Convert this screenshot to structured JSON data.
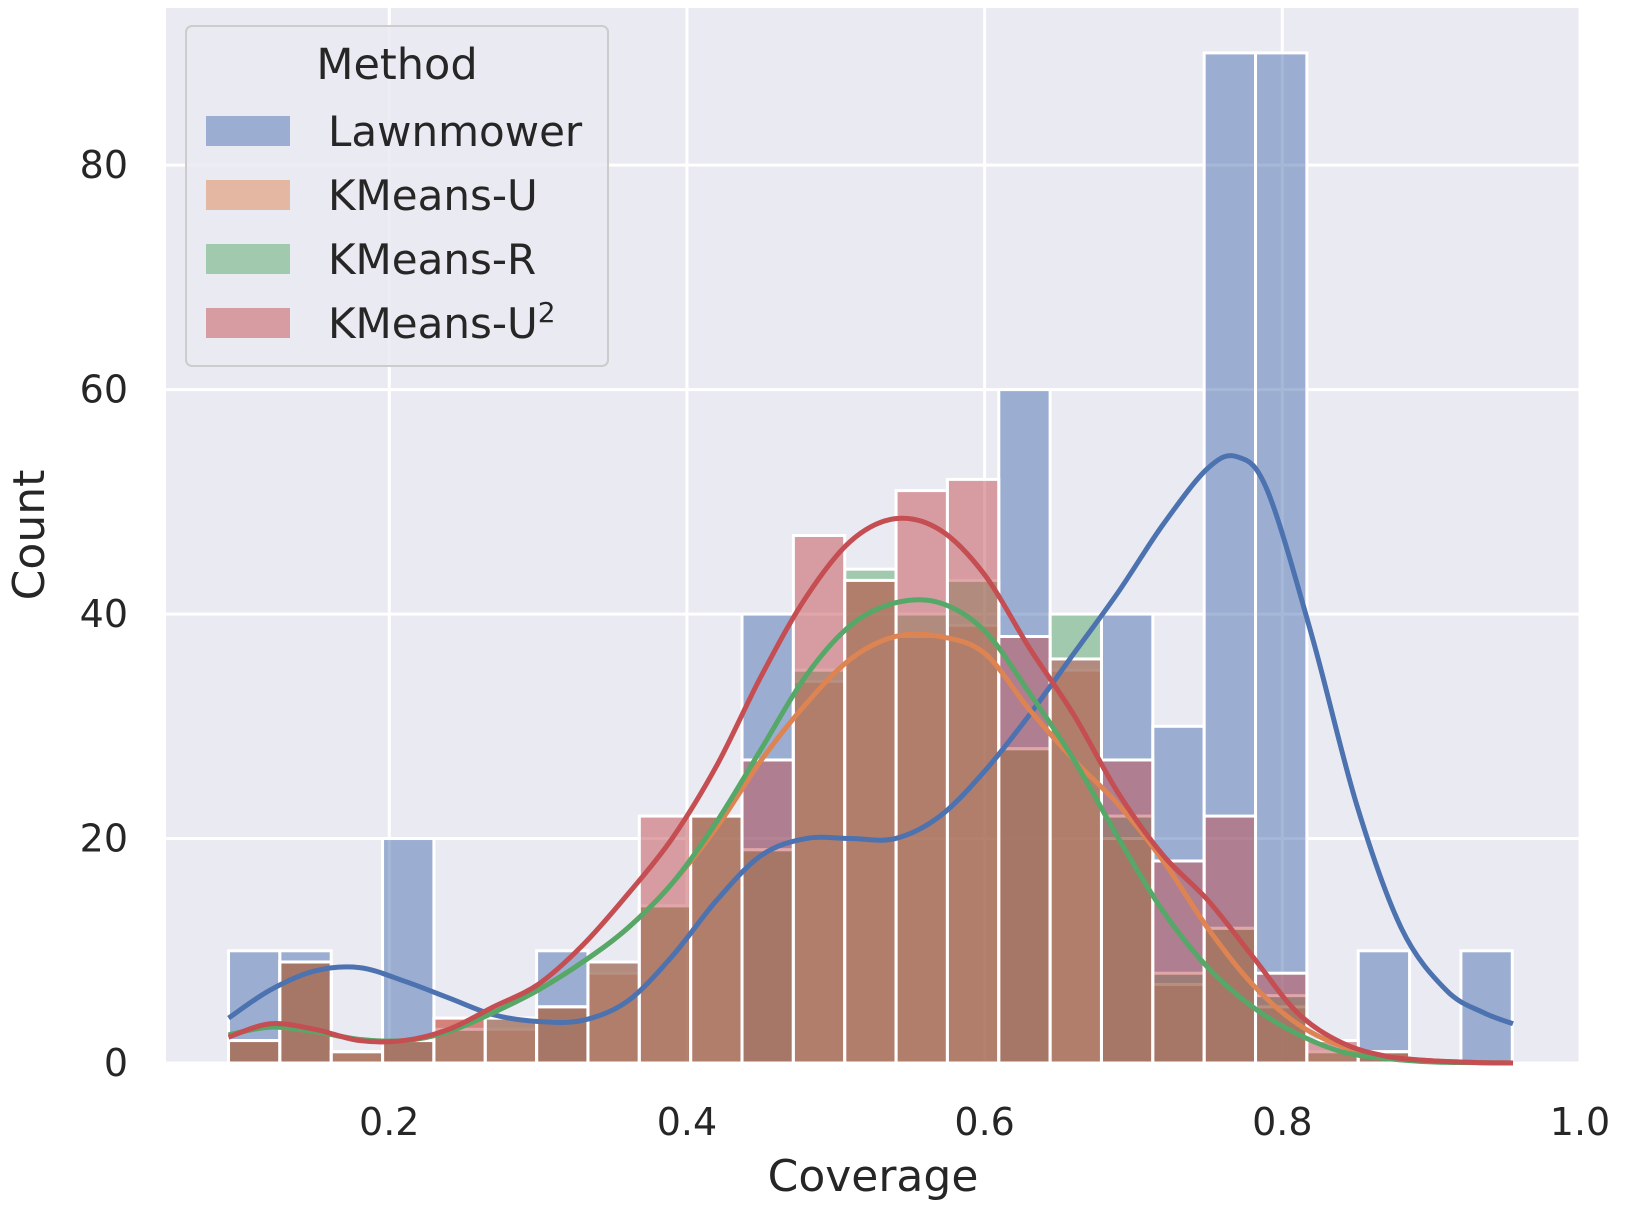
{
  "chart_data": {
    "type": "bar",
    "subtype": "overlaid histogram with kde curves",
    "xlabel": "Coverage",
    "ylabel": "Count",
    "xlim": [
      0.05,
      1.0
    ],
    "ylim": [
      0,
      94
    ],
    "xticks": [
      0.2,
      0.4,
      0.6,
      0.8,
      1.0
    ],
    "xtick_labels": [
      "0.2",
      "0.4",
      "0.6",
      "0.8",
      "1.0"
    ],
    "yticks": [
      0,
      20,
      40,
      60,
      80
    ],
    "ytick_labels": [
      "0",
      "20",
      "40",
      "60",
      "80"
    ],
    "grid": true,
    "background": "#eaeaf2",
    "legend": {
      "title": "Method",
      "position": "top-left",
      "entries": [
        {
          "label": "Lawnmower",
          "suffix": ""
        },
        {
          "label": "KMeans-U",
          "suffix": ""
        },
        {
          "label": "KMeans-R",
          "suffix": ""
        },
        {
          "label": "KMeans-U",
          "suffix": "2"
        }
      ]
    },
    "bin_edges": [
      0.092,
      0.1265,
      0.161,
      0.1955,
      0.23,
      0.2645,
      0.299,
      0.3335,
      0.368,
      0.4025,
      0.437,
      0.4715,
      0.506,
      0.5405,
      0.575,
      0.6095,
      0.644,
      0.6785,
      0.713,
      0.7475,
      0.782,
      0.8165,
      0.851,
      0.8855,
      0.92,
      0.9545
    ],
    "series": [
      {
        "name": "Lawnmower",
        "color": "#4c72b0",
        "counts": [
          10,
          10,
          0,
          20,
          0,
          0,
          10,
          0,
          0,
          0,
          40,
          0,
          0,
          0,
          0,
          60,
          0,
          40,
          30,
          90,
          90,
          0,
          10,
          0,
          10
        ],
        "kde_x": [
          0.092,
          0.12,
          0.15,
          0.18,
          0.21,
          0.24,
          0.27,
          0.3,
          0.33,
          0.36,
          0.39,
          0.42,
          0.45,
          0.48,
          0.51,
          0.54,
          0.57,
          0.6,
          0.63,
          0.66,
          0.69,
          0.72,
          0.75,
          0.77,
          0.79,
          0.82,
          0.85,
          0.88,
          0.91,
          0.935,
          0.955
        ],
        "kde_y": [
          4,
          6.5,
          8.2,
          8.5,
          7.3,
          5.8,
          4.3,
          3.7,
          3.8,
          5.5,
          9.5,
          14.5,
          18.5,
          20.0,
          20.0,
          20.0,
          22.0,
          26,
          31,
          36.5,
          42,
          48,
          53,
          54,
          51,
          38,
          23,
          12,
          6.5,
          4.5,
          3.5
        ]
      },
      {
        "name": "KMeans-U",
        "color": "#dd8452",
        "counts": [
          2,
          9,
          1,
          2,
          4,
          3,
          5,
          8,
          14,
          22,
          19,
          34,
          43,
          38,
          39,
          28,
          35,
          20,
          7,
          12,
          5,
          1,
          1,
          0,
          0
        ],
        "kde_x": [
          0.092,
          0.12,
          0.15,
          0.18,
          0.21,
          0.24,
          0.27,
          0.3,
          0.33,
          0.36,
          0.39,
          0.42,
          0.45,
          0.48,
          0.51,
          0.54,
          0.57,
          0.6,
          0.63,
          0.66,
          0.69,
          0.72,
          0.75,
          0.78,
          0.81,
          0.84,
          0.87,
          0.9,
          0.93,
          0.955
        ],
        "kde_y": [
          2.5,
          3.2,
          2.8,
          2.1,
          2.0,
          2.8,
          4.5,
          6.5,
          9.0,
          12,
          16,
          21,
          27,
          32,
          36,
          38,
          38,
          36.5,
          31.5,
          27,
          23,
          18,
          12,
          7,
          3.5,
          1.5,
          0.6,
          0.2,
          0.05,
          0
        ]
      },
      {
        "name": "KMeans-R",
        "color": "#55a868",
        "counts": [
          2,
          9,
          1,
          2,
          3,
          4,
          5,
          9,
          14,
          22,
          19,
          35,
          44,
          40,
          43,
          28,
          40,
          22,
          8,
          12,
          6,
          1,
          1,
          0,
          0
        ],
        "kde_x": [
          0.092,
          0.12,
          0.15,
          0.18,
          0.21,
          0.24,
          0.27,
          0.3,
          0.33,
          0.36,
          0.39,
          0.42,
          0.45,
          0.48,
          0.51,
          0.54,
          0.57,
          0.6,
          0.63,
          0.66,
          0.69,
          0.72,
          0.75,
          0.78,
          0.81,
          0.84,
          0.87,
          0.9,
          0.93,
          0.955
        ],
        "kde_y": [
          2.5,
          3.2,
          2.8,
          2.1,
          2.0,
          2.8,
          4.5,
          6.5,
          9.0,
          12,
          16,
          21.5,
          28,
          34.5,
          39,
          41,
          41,
          38.5,
          33,
          27,
          20,
          13.5,
          8.5,
          5,
          2.6,
          1.0,
          0.4,
          0.1,
          0.03,
          0
        ]
      },
      {
        "name": "KMeans-U²",
        "color": "#c44e52",
        "counts": [
          2,
          9,
          1,
          2,
          4,
          4,
          5,
          9,
          22,
          22,
          27,
          47,
          43,
          51,
          52,
          38,
          36,
          27,
          18,
          22,
          8,
          2,
          1,
          0,
          0
        ],
        "kde_x": [
          0.092,
          0.12,
          0.15,
          0.18,
          0.21,
          0.24,
          0.27,
          0.3,
          0.33,
          0.36,
          0.39,
          0.42,
          0.45,
          0.48,
          0.51,
          0.54,
          0.57,
          0.6,
          0.63,
          0.66,
          0.69,
          0.72,
          0.75,
          0.78,
          0.81,
          0.84,
          0.87,
          0.9,
          0.93,
          0.955
        ],
        "kde_y": [
          2.3,
          3.5,
          3.0,
          2.0,
          2.0,
          3.0,
          5.0,
          7.0,
          10.5,
          15,
          20,
          26.5,
          34.5,
          41.5,
          46.5,
          48.5,
          47.5,
          43.5,
          37,
          31,
          24,
          18.5,
          14.5,
          9.5,
          4.5,
          1.8,
          0.6,
          0.2,
          0.05,
          0
        ]
      }
    ]
  }
}
